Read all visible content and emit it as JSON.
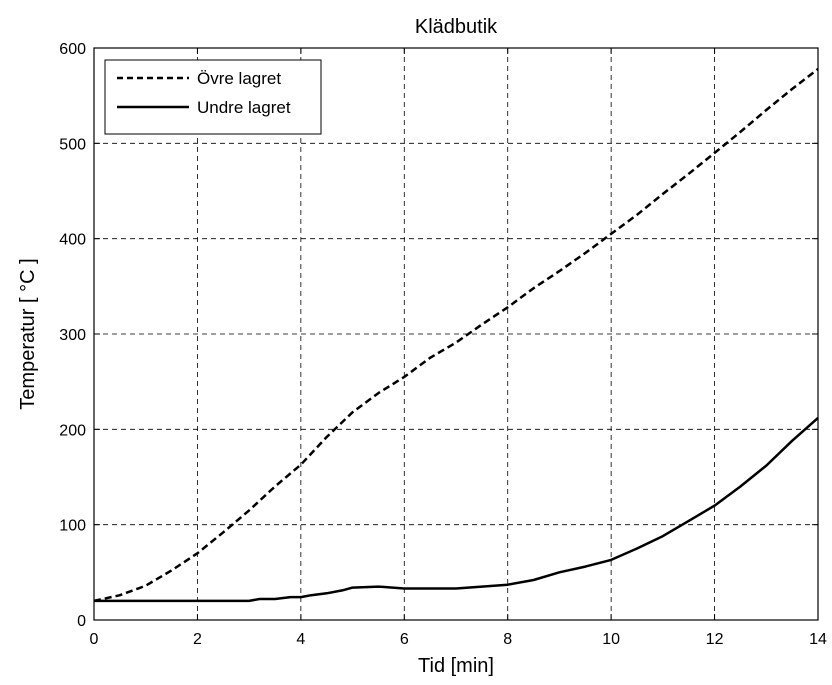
{
  "chart_data": {
    "type": "line",
    "title": "Klädbutik",
    "xlabel": "Tid [min]",
    "ylabel": "Temperatur [ °C ]",
    "xlim": [
      0,
      14
    ],
    "ylim": [
      0,
      600
    ],
    "xticks": [
      0,
      2,
      4,
      6,
      8,
      10,
      12,
      14
    ],
    "yticks": [
      0,
      100,
      200,
      300,
      400,
      500,
      600
    ],
    "grid": true,
    "legend_position": "top-left",
    "series": [
      {
        "name": "Övre lagret",
        "line_style": "dashed",
        "color": "#000000",
        "x": [
          0,
          0.5,
          1,
          1.5,
          2,
          2.5,
          3,
          3.5,
          4,
          4.5,
          5,
          5.5,
          6,
          6.5,
          7,
          7.5,
          8,
          8.5,
          9,
          9.5,
          10,
          10.5,
          11,
          11.5,
          12,
          12.5,
          13,
          13.5,
          14
        ],
        "y": [
          20,
          26,
          36,
          52,
          70,
          92,
          115,
          140,
          163,
          192,
          218,
          238,
          255,
          275,
          291,
          310,
          328,
          348,
          366,
          385,
          405,
          425,
          447,
          468,
          490,
          512,
          535,
          557,
          578
        ]
      },
      {
        "name": "Undre lagret",
        "line_style": "solid",
        "color": "#000000",
        "x": [
          0,
          0.5,
          1,
          1.5,
          2,
          2.5,
          3,
          3.2,
          3.5,
          3.8,
          4,
          4.2,
          4.5,
          4.8,
          5,
          5.5,
          6,
          6.5,
          7,
          7.5,
          8,
          8.5,
          9,
          9.5,
          10,
          10.5,
          11,
          11.5,
          12,
          12.5,
          13,
          13.5,
          14
        ],
        "y": [
          20,
          20,
          20,
          20,
          20,
          20,
          20,
          22,
          22,
          24,
          24,
          26,
          28,
          31,
          34,
          35,
          33,
          33,
          33,
          35,
          37,
          42,
          50,
          56,
          63,
          75,
          88,
          104,
          120,
          140,
          162,
          188,
          212
        ]
      }
    ]
  }
}
